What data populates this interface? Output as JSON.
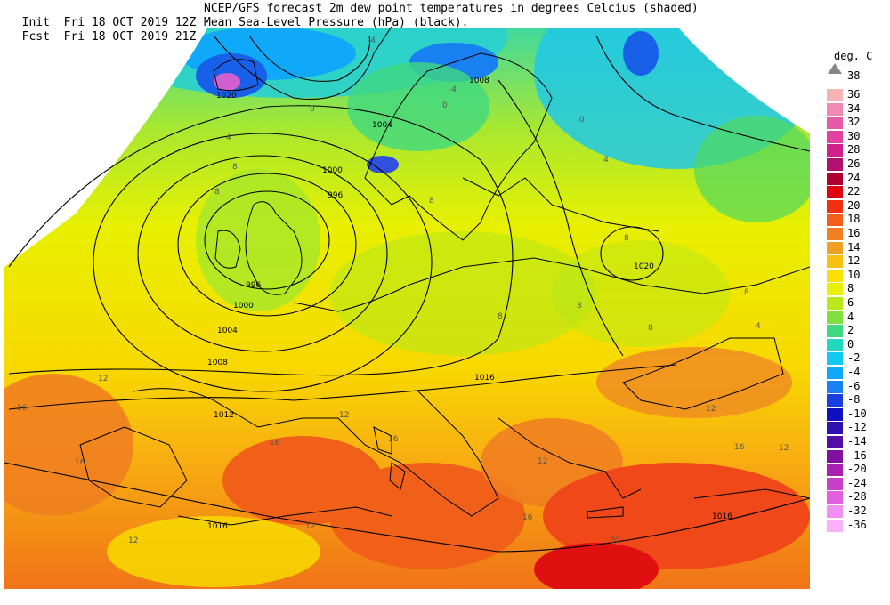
{
  "header": {
    "init_label": "Init",
    "init_time": "Fri 18 OCT 2019 12Z",
    "fcst_label": "Fcst",
    "fcst_time": "Fri 18 OCT 2019 21Z",
    "title_line1": "NCEP/GFS forecast 2m dew point temperatures in degrees Celcius (shaded)",
    "title_line2": "Mean Sea-Level Pressure (hPa) (black)."
  },
  "legend": {
    "unit": "deg. C",
    "top_value": "38",
    "entries": [
      {
        "label": "36",
        "color": "#f7b2b2"
      },
      {
        "label": "34",
        "color": "#f08ab4"
      },
      {
        "label": "32",
        "color": "#e65aa8"
      },
      {
        "label": "30",
        "color": "#e040a0"
      },
      {
        "label": "28",
        "color": "#d0208c"
      },
      {
        "label": "26",
        "color": "#b0106e"
      },
      {
        "label": "24",
        "color": "#b00030"
      },
      {
        "label": "22",
        "color": "#e00010"
      },
      {
        "label": "20",
        "color": "#f03010"
      },
      {
        "label": "18",
        "color": "#f06018"
      },
      {
        "label": "16",
        "color": "#f08020"
      },
      {
        "label": "14",
        "color": "#f0a020"
      },
      {
        "label": "12",
        "color": "#f8c010"
      },
      {
        "label": "10",
        "color": "#f8e000"
      },
      {
        "label": "8",
        "color": "#e8f000"
      },
      {
        "label": "6",
        "color": "#b8e818"
      },
      {
        "label": "4",
        "color": "#80e040"
      },
      {
        "label": "2",
        "color": "#40d880"
      },
      {
        "label": "0",
        "color": "#20d8c0"
      },
      {
        "label": "-2",
        "color": "#10c8f0"
      },
      {
        "label": "-4",
        "color": "#10a8f8"
      },
      {
        "label": "-6",
        "color": "#1880f0"
      },
      {
        "label": "-8",
        "color": "#1840e0"
      },
      {
        "label": "-10",
        "color": "#1010c0"
      },
      {
        "label": "-12",
        "color": "#3010b0"
      },
      {
        "label": "-14",
        "color": "#5010a8"
      },
      {
        "label": "-16",
        "color": "#8010a0"
      },
      {
        "label": "-20",
        "color": "#a820b0"
      },
      {
        "label": "-24",
        "color": "#c840c8"
      },
      {
        "label": "-28",
        "color": "#e060e0"
      },
      {
        "label": "-32",
        "color": "#f090f0"
      },
      {
        "label": "-36",
        "color": "#f8b0f8"
      }
    ]
  },
  "isobar_labels": [
    {
      "text": "1020"
    },
    {
      "text": "1008"
    },
    {
      "text": "1004"
    },
    {
      "text": "1000"
    },
    {
      "text": "996"
    },
    {
      "text": "996"
    },
    {
      "text": "1000"
    },
    {
      "text": "1004"
    },
    {
      "text": "1008"
    },
    {
      "text": "1012"
    },
    {
      "text": "1016"
    },
    {
      "text": "1016"
    },
    {
      "text": "1020"
    },
    {
      "text": "1016"
    }
  ],
  "dewpoint_labels": [
    {
      "text": "-4"
    },
    {
      "text": "-4"
    },
    {
      "text": "0"
    },
    {
      "text": "0"
    },
    {
      "text": "0"
    },
    {
      "text": "4"
    },
    {
      "text": "4"
    },
    {
      "text": "8"
    },
    {
      "text": "8"
    },
    {
      "text": "8"
    },
    {
      "text": "8"
    },
    {
      "text": "8"
    },
    {
      "text": "8"
    },
    {
      "text": "8"
    },
    {
      "text": "12"
    },
    {
      "text": "12"
    },
    {
      "text": "12"
    },
    {
      "text": "12"
    },
    {
      "text": "16"
    },
    {
      "text": "16"
    },
    {
      "text": "16"
    },
    {
      "text": "16"
    },
    {
      "text": "16"
    },
    {
      "text": "16"
    },
    {
      "text": "20"
    },
    {
      "text": "12"
    },
    {
      "text": "12"
    },
    {
      "text": "8"
    },
    {
      "text": "4"
    },
    {
      "text": "12"
    }
  ]
}
